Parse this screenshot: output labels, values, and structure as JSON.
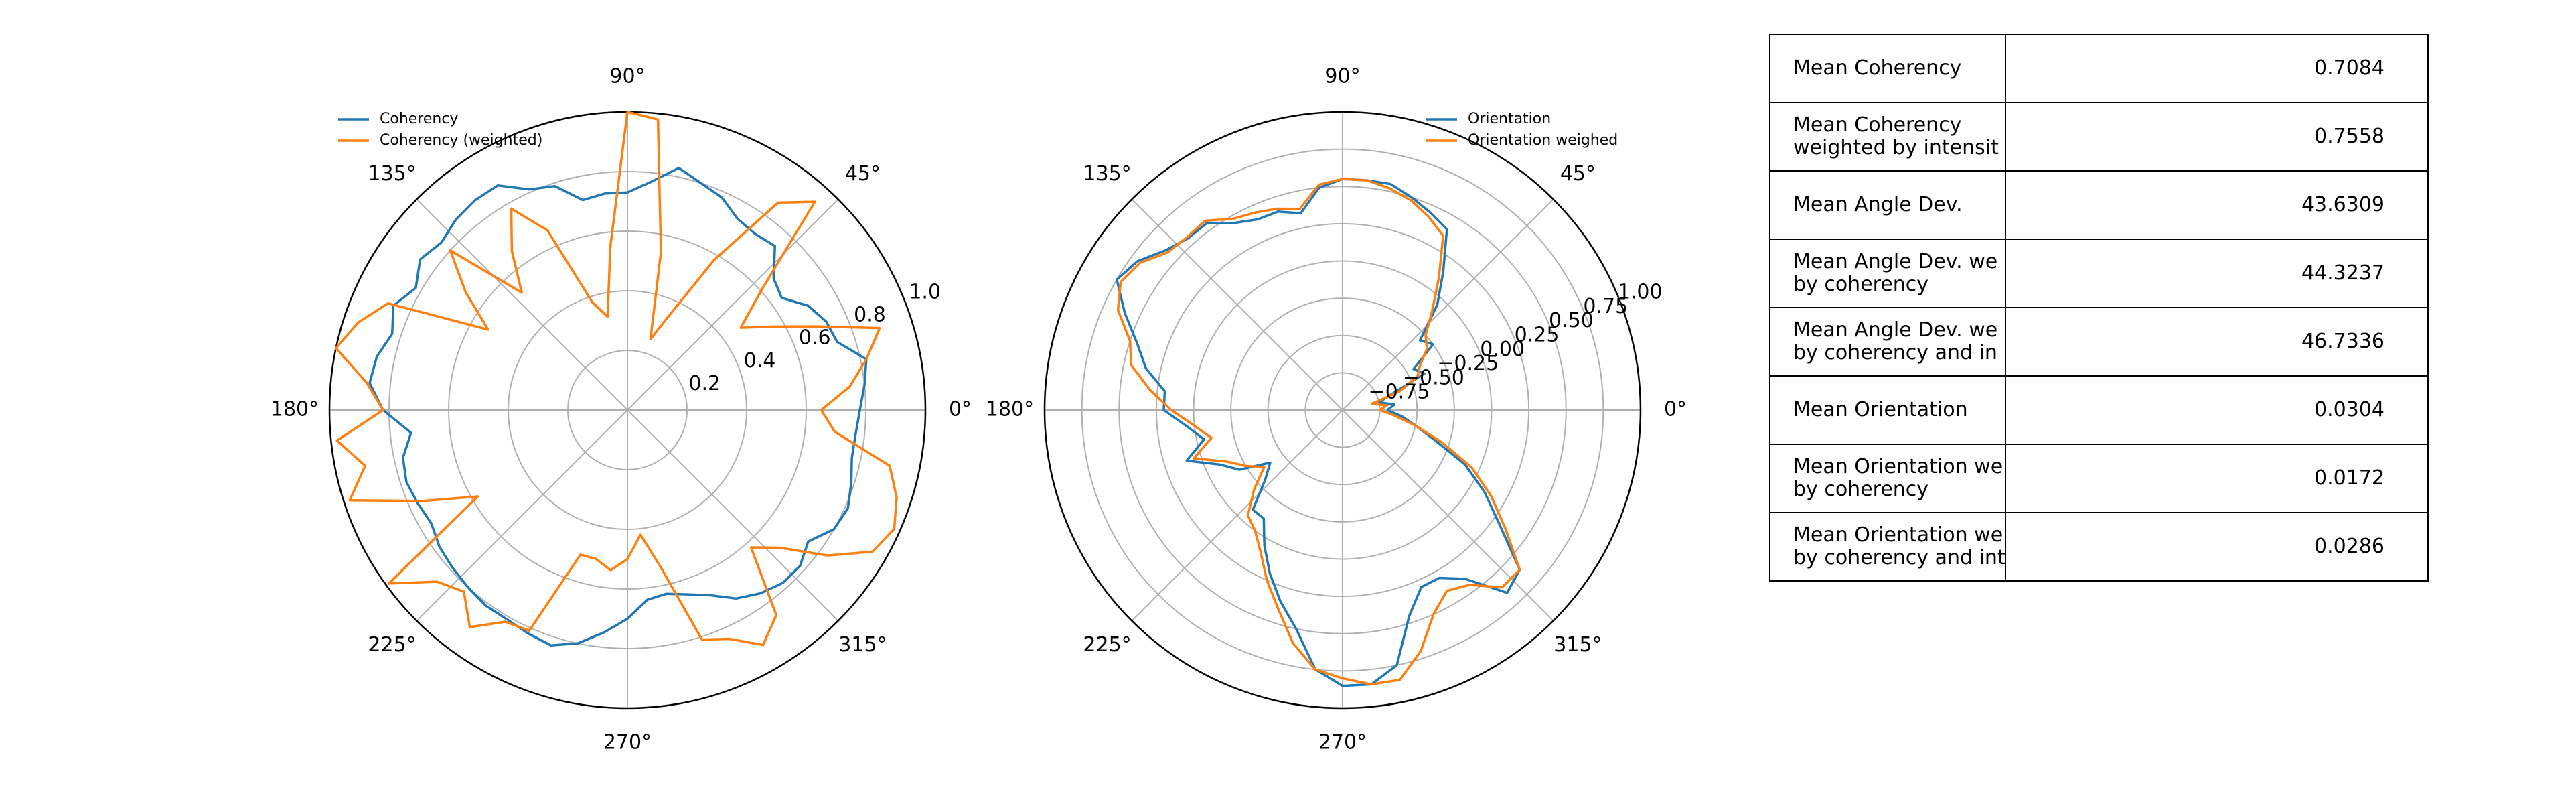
{
  "colors": {
    "series1": "#1f77b4",
    "series2": "#ff7f0e",
    "grid": "#b0b0b0",
    "axis": "#000000"
  },
  "chart_data": [
    {
      "type": "line",
      "projection": "polar",
      "theta_unit": "degrees",
      "theta_tick_labels": [
        "0°",
        "45°",
        "90°",
        "135°",
        "180°",
        "225°",
        "270°",
        "315°"
      ],
      "r_ticks": [
        0.2,
        0.4,
        0.6,
        0.8,
        1.0
      ],
      "r_tick_labels": [
        "0.2",
        "0.4",
        "0.6",
        "0.8",
        "1.0"
      ],
      "rlim": [
        0,
        1.0
      ],
      "grid": true,
      "legend_position": "upper-left",
      "series": [
        {
          "name": "Coherency",
          "theta": [
            0,
            6,
            12,
            18,
            24,
            30,
            36,
            42,
            48,
            54,
            60,
            66,
            72,
            78,
            84,
            90,
            96,
            102,
            108,
            114,
            120,
            126,
            132,
            138,
            144,
            150,
            156,
            162,
            168,
            174,
            180,
            186,
            192,
            198,
            204,
            210,
            216,
            222,
            228,
            234,
            240,
            246,
            252,
            258,
            264,
            270,
            276,
            282,
            288,
            294,
            300,
            306,
            312,
            318,
            324,
            330,
            336,
            342,
            348,
            354
          ],
          "r": [
            0.78,
            0.8,
            0.82,
            0.74,
            0.73,
            0.7,
            0.64,
            0.66,
            0.74,
            0.73,
            0.74,
            0.78,
            0.8,
            0.83,
            0.77,
            0.73,
            0.73,
            0.72,
            0.79,
            0.81,
            0.87,
            0.87,
            0.86,
            0.84,
            0.86,
            0.82,
            0.86,
            0.83,
            0.86,
            0.87,
            0.82,
            0.73,
            0.77,
            0.78,
            0.77,
            0.76,
            0.78,
            0.79,
            0.8,
            0.81,
            0.81,
            0.82,
            0.83,
            0.8,
            0.75,
            0.7,
            0.64,
            0.63,
            0.65,
            0.68,
            0.73,
            0.76,
            0.78,
            0.78,
            0.75,
            0.8,
            0.81,
            0.79,
            0.77,
            0.77
          ]
        },
        {
          "name": "Coherency (weighted)",
          "theta": [
            0,
            6,
            12,
            18,
            24,
            30,
            36,
            42,
            48,
            54,
            60,
            66,
            72,
            78,
            84,
            90,
            96,
            102,
            108,
            114,
            120,
            126,
            132,
            138,
            144,
            150,
            156,
            162,
            168,
            174,
            180,
            186,
            192,
            198,
            204,
            210,
            216,
            222,
            228,
            234,
            240,
            246,
            252,
            258,
            264,
            270,
            276,
            282,
            288,
            294,
            300,
            306,
            312,
            318,
            324,
            330,
            336,
            342,
            348,
            354
          ],
          "r": [
            0.65,
            0.75,
            0.82,
            0.89,
            0.69,
            0.56,
            0.47,
            0.61,
            0.94,
            0.86,
            0.58,
            0.35,
            0.25,
            0.54,
            0.98,
            1.0,
            0.55,
            0.32,
            0.38,
            0.66,
            0.78,
            0.66,
            0.53,
            0.8,
            0.67,
            0.54,
            0.88,
            0.95,
            1.0,
            0.88,
            0.82,
            0.98,
            0.9,
            0.98,
            0.75,
            0.58,
            0.99,
            0.86,
            0.82,
            0.9,
            0.82,
            0.81,
            0.51,
            0.51,
            0.54,
            0.5,
            0.42,
            0.54,
            0.81,
            0.84,
            0.91,
            0.85,
            0.62,
            0.69,
            0.83,
            0.95,
            0.98,
            0.95,
            0.9,
            0.7
          ]
        }
      ]
    },
    {
      "type": "line",
      "projection": "polar",
      "theta_unit": "degrees",
      "theta_tick_labels": [
        "0°",
        "45°",
        "90°",
        "135°",
        "180°",
        "225°",
        "270°",
        "315°"
      ],
      "r_ticks": [
        -0.75,
        -0.5,
        -0.25,
        0.0,
        0.25,
        0.5,
        0.75,
        1.0
      ],
      "r_tick_labels": [
        "−0.75",
        "−0.50",
        "−0.25",
        "0.00",
        "0.25",
        "0.50",
        "0.75",
        "1.00"
      ],
      "rlim": [
        -1.0,
        1.0
      ],
      "grid": true,
      "legend_position": "upper-right",
      "series": [
        {
          "name": "Orientation",
          "theta": [
            0,
            6,
            12,
            18,
            24,
            30,
            36,
            42,
            48,
            54,
            60,
            66,
            72,
            78,
            84,
            90,
            96,
            102,
            108,
            114,
            120,
            126,
            132,
            138,
            144,
            150,
            156,
            162,
            168,
            174,
            180,
            186,
            192,
            198,
            204,
            210,
            216,
            222,
            228,
            234,
            240,
            246,
            252,
            258,
            264,
            270,
            276,
            282,
            288,
            294,
            300,
            306,
            312,
            318,
            324,
            330,
            336,
            342,
            348,
            354
          ],
          "r": [
            -0.7,
            -0.65,
            -0.75,
            -0.65,
            -0.4,
            -0.45,
            -0.25,
            -0.3,
            -0.05,
            0.15,
            0.4,
            0.45,
            0.5,
            0.55,
            0.55,
            0.55,
            0.5,
            0.35,
            0.4,
            0.4,
            0.45,
            0.55,
            0.55,
            0.6,
            0.7,
            0.75,
            0.6,
            0.45,
            0.35,
            0.2,
            0.2,
            0.05,
            -0.05,
            0.1,
            -0.1,
            -0.2,
            -0.4,
            -0.3,
            -0.1,
            -0.1,
            0.05,
            0.2,
            0.35,
            0.5,
            0.75,
            0.85,
            0.85,
            0.75,
            0.45,
            0.3,
            0.3,
            0.4,
            0.65,
            0.6,
            0.3,
            0.1,
            -0.1,
            -0.35,
            -0.5,
            -0.6
          ]
        },
        {
          "name": "Orientation weighed",
          "theta": [
            0,
            6,
            12,
            18,
            24,
            30,
            36,
            42,
            48,
            54,
            60,
            66,
            72,
            78,
            84,
            90,
            96,
            102,
            108,
            114,
            120,
            126,
            132,
            138,
            144,
            150,
            156,
            162,
            168,
            174,
            180,
            186,
            192,
            198,
            204,
            210,
            216,
            222,
            228,
            234,
            240,
            246,
            252,
            258,
            264,
            270,
            276,
            282,
            288,
            294,
            300,
            306,
            312,
            318,
            324,
            330,
            336,
            342,
            348,
            354
          ],
          "r": [
            -0.75,
            -0.7,
            -0.8,
            -0.6,
            -0.45,
            -0.4,
            -0.3,
            -0.25,
            -0.1,
            0.1,
            0.35,
            0.42,
            0.48,
            0.52,
            0.55,
            0.55,
            0.52,
            0.38,
            0.42,
            0.45,
            0.48,
            0.57,
            0.56,
            0.58,
            0.68,
            0.72,
            0.65,
            0.5,
            0.45,
            0.3,
            0.15,
            0.0,
            -0.1,
            0.05,
            -0.15,
            -0.25,
            -0.35,
            -0.2,
            -0.05,
            0.0,
            0.1,
            0.25,
            0.4,
            0.6,
            0.75,
            0.8,
            0.85,
            0.85,
            0.7,
            0.5,
            0.4,
            0.45,
            0.6,
            0.6,
            0.35,
            0.15,
            -0.05,
            -0.3,
            -0.5,
            -0.65
          ]
        }
      ]
    }
  ],
  "table": {
    "rows": [
      {
        "label": "Mean Coherency",
        "value": "0.7084"
      },
      {
        "label": "Mean Coherency\nweighted by intensit",
        "value": "0.7558"
      },
      {
        "label": "Mean Angle Dev.",
        "value": "43.6309"
      },
      {
        "label": "Mean Angle Dev. we\nby coherency",
        "value": "44.3237"
      },
      {
        "label": "Mean Angle Dev. we\nby coherency and in",
        "value": "46.7336"
      },
      {
        "label": "Mean Orientation",
        "value": "0.0304"
      },
      {
        "label": "Mean Orientation we\nby coherency",
        "value": "0.0172"
      },
      {
        "label": "Mean Orientation we\nby coherency and int",
        "value": "0.0286"
      }
    ]
  }
}
